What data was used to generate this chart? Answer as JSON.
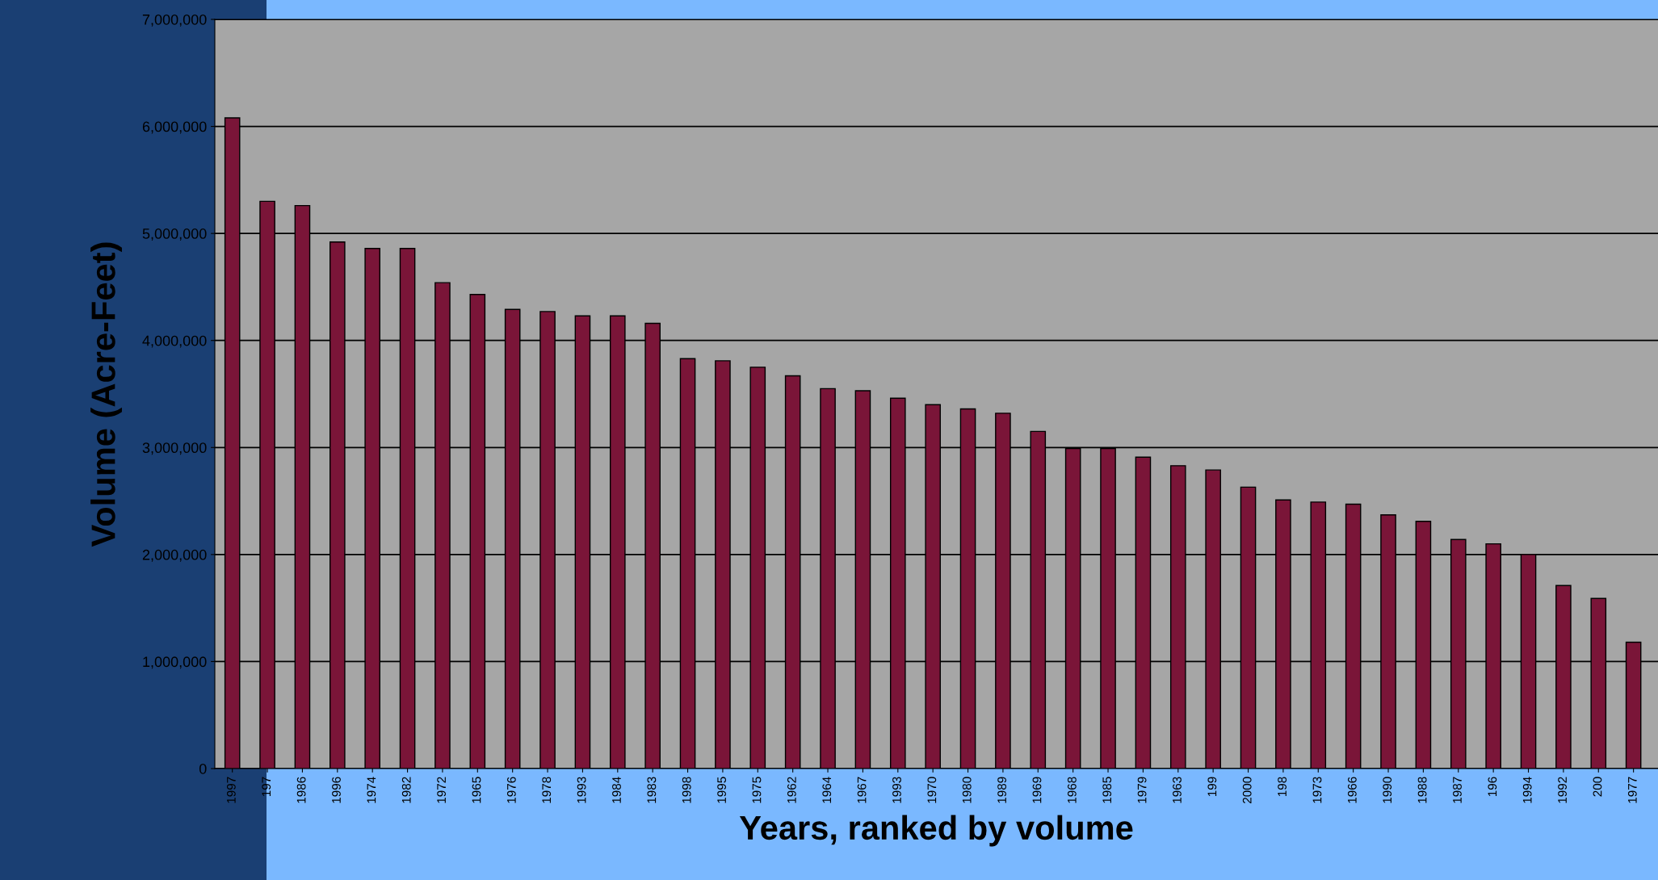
{
  "chart_data": {
    "type": "bar",
    "xlabel": "Years, ranked by volume",
    "ylabel": "Volume (Acre-Feet)",
    "categories": [
      "1997",
      "197",
      "1986",
      "1996",
      "1974",
      "1982",
      "1972",
      "1965",
      "1976",
      "1978",
      "1993",
      "1984",
      "1983",
      "1998",
      "1995",
      "1975",
      "1962",
      "1964",
      "1967",
      "1993",
      "1970",
      "1980",
      "1989",
      "1969",
      "1968",
      "1985",
      "1979",
      "1963",
      "199",
      "2000",
      "198",
      "1973",
      "1966",
      "1990",
      "1988",
      "1987",
      "196",
      "1994",
      "1992",
      "200",
      "1977"
    ],
    "values": [
      6080000,
      5300000,
      5260000,
      4920000,
      4860000,
      4860000,
      4540000,
      4430000,
      4290000,
      4270000,
      4230000,
      4230000,
      4160000,
      3830000,
      3810000,
      3750000,
      3670000,
      3550000,
      3530000,
      3460000,
      3400000,
      3360000,
      3320000,
      3150000,
      2990000,
      2990000,
      2910000,
      2830000,
      2790000,
      2630000,
      2510000,
      2490000,
      2470000,
      2370000,
      2310000,
      2140000,
      2100000,
      2000000,
      1710000,
      1590000,
      1180000
    ],
    "color": "#7a1538",
    "ylim": [
      0,
      7000000
    ],
    "yticks": [
      {
        "value": 0,
        "label": "0"
      },
      {
        "value": 1000000,
        "label": "1,000,000"
      },
      {
        "value": 2000000,
        "label": "2,000,000"
      },
      {
        "value": 3000000,
        "label": "3,000,000"
      },
      {
        "value": 4000000,
        "label": "4,000,000"
      },
      {
        "value": 5000000,
        "label": "5,000,000"
      },
      {
        "value": 6000000,
        "label": "6,000,000"
      },
      {
        "value": 7000000,
        "label": "7,000,000"
      }
    ],
    "grid": "y",
    "legend": false
  }
}
